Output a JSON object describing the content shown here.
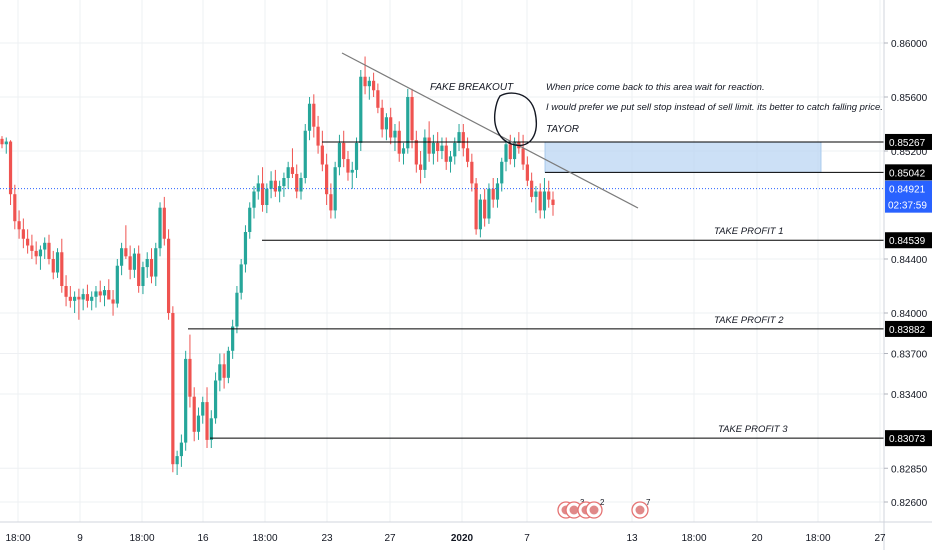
{
  "chart_data": {
    "type": "candlestick",
    "x_tick_labels": [
      "18:00",
      "9",
      "18:00",
      "16",
      "18:00",
      "23",
      "27",
      "2020",
      "7",
      "13",
      "18:00",
      "20",
      "18:00",
      "27"
    ],
    "y_tick_labels": [
      "0.86000",
      "0.85600",
      "0.85200",
      "0.84400",
      "0.84000",
      "0.83700",
      "0.83400",
      "0.82850",
      "0.82600"
    ],
    "ylim": [
      0.8245,
      0.8628
    ],
    "grid": true,
    "last_price": {
      "value": 0.84921,
      "label": "0.84921",
      "countdown": "02:37:59",
      "color": "#2962ff"
    },
    "levels": [
      {
        "id": "sell-zone-top",
        "value": 0.85267,
        "label": "0.85267",
        "text": ""
      },
      {
        "id": "sell-zone-bottom",
        "value": 0.85042,
        "label": "0.85042",
        "text": ""
      },
      {
        "id": "take-profit-1",
        "value": 0.84539,
        "label": "0.84539",
        "text": "TAKE PROFIT 1"
      },
      {
        "id": "take-profit-2",
        "value": 0.83882,
        "label": "0.83882",
        "text": "TAKE PROFIT 2"
      },
      {
        "id": "take-profit-3",
        "value": 0.83073,
        "label": "0.83073",
        "text": "TAKE PROFIT 3"
      }
    ],
    "annotations": {
      "fake_breakout": "FAKE BREAKOUT",
      "note_1": "When price come back to this area wait for reaction.",
      "note_2": "I would prefer we put sell stop instead of sell limit. its better to catch falling price.",
      "author": "TAYOR"
    },
    "trendline": {
      "from": [
        0.859,
        "Dec 23"
      ],
      "to": [
        0.8478,
        "Jan 10"
      ]
    },
    "event_markers": [
      {
        "count": "3"
      },
      {
        "count": "2"
      },
      {
        "count": "7"
      }
    ],
    "colors": {
      "up": "#26a69a",
      "down": "#ef5350",
      "zone": "#bbd6f3",
      "grid": "#eef0f3"
    },
    "candles": [
      [
        0.8529,
        0.8531,
        0.8522,
        0.8525
      ],
      [
        0.8525,
        0.853,
        0.8518,
        0.8527
      ],
      [
        0.8527,
        0.8528,
        0.848,
        0.8488
      ],
      [
        0.8488,
        0.8495,
        0.8462,
        0.8468
      ],
      [
        0.8468,
        0.8476,
        0.8455,
        0.8462
      ],
      [
        0.8462,
        0.847,
        0.8448,
        0.8455
      ],
      [
        0.8455,
        0.8462,
        0.8444,
        0.845
      ],
      [
        0.845,
        0.8458,
        0.844,
        0.8446
      ],
      [
        0.8446,
        0.8453,
        0.8436,
        0.8442
      ],
      [
        0.8442,
        0.845,
        0.8432,
        0.8447
      ],
      [
        0.8447,
        0.8456,
        0.844,
        0.8452
      ],
      [
        0.8452,
        0.8458,
        0.8436,
        0.844
      ],
      [
        0.844,
        0.8446,
        0.8425,
        0.843
      ],
      [
        0.843,
        0.8448,
        0.8426,
        0.8445
      ],
      [
        0.8445,
        0.8455,
        0.8415,
        0.842
      ],
      [
        0.842,
        0.8428,
        0.8405,
        0.8412
      ],
      [
        0.8412,
        0.842,
        0.8404,
        0.8409
      ],
      [
        0.8409,
        0.8416,
        0.84,
        0.8412
      ],
      [
        0.8412,
        0.8418,
        0.8395,
        0.841
      ],
      [
        0.841,
        0.8418,
        0.8402,
        0.8414
      ],
      [
        0.8414,
        0.8421,
        0.8404,
        0.8409
      ],
      [
        0.8409,
        0.8416,
        0.8402,
        0.8412
      ],
      [
        0.8412,
        0.842,
        0.8404,
        0.8416
      ],
      [
        0.8416,
        0.8424,
        0.8408,
        0.8413
      ],
      [
        0.8413,
        0.842,
        0.8405,
        0.8417
      ],
      [
        0.8417,
        0.8425,
        0.841,
        0.841
      ],
      [
        0.841,
        0.8417,
        0.8398,
        0.8407
      ],
      [
        0.8407,
        0.844,
        0.8404,
        0.8435
      ],
      [
        0.8435,
        0.8452,
        0.8428,
        0.8448
      ],
      [
        0.8448,
        0.8465,
        0.844,
        0.8442
      ],
      [
        0.8442,
        0.845,
        0.8425,
        0.8432
      ],
      [
        0.8432,
        0.8448,
        0.8426,
        0.8444
      ],
      [
        0.8444,
        0.845,
        0.8415,
        0.842
      ],
      [
        0.842,
        0.8438,
        0.8414,
        0.8434
      ],
      [
        0.8434,
        0.8445,
        0.8426,
        0.844
      ],
      [
        0.844,
        0.8448,
        0.8422,
        0.8427
      ],
      [
        0.8427,
        0.8452,
        0.842,
        0.8448
      ],
      [
        0.8448,
        0.8482,
        0.8442,
        0.8478
      ],
      [
        0.8478,
        0.8486,
        0.845,
        0.8455
      ],
      [
        0.8455,
        0.8462,
        0.8395,
        0.84
      ],
      [
        0.84,
        0.8405,
        0.8282,
        0.8288
      ],
      [
        0.8288,
        0.8298,
        0.828,
        0.8294
      ],
      [
        0.8294,
        0.831,
        0.8286,
        0.8304
      ],
      [
        0.8304,
        0.8372,
        0.8298,
        0.8366
      ],
      [
        0.8366,
        0.8384,
        0.833,
        0.8338
      ],
      [
        0.8338,
        0.8345,
        0.8305,
        0.8312
      ],
      [
        0.8312,
        0.833,
        0.8306,
        0.8324
      ],
      [
        0.8324,
        0.8338,
        0.8318,
        0.8334
      ],
      [
        0.8334,
        0.8345,
        0.83,
        0.8306
      ],
      [
        0.8306,
        0.8328,
        0.83,
        0.8322
      ],
      [
        0.8322,
        0.8356,
        0.8318,
        0.835
      ],
      [
        0.835,
        0.837,
        0.8342,
        0.8362
      ],
      [
        0.8362,
        0.837,
        0.8344,
        0.8352
      ],
      [
        0.8352,
        0.8375,
        0.8348,
        0.8372
      ],
      [
        0.8372,
        0.8395,
        0.8366,
        0.839
      ],
      [
        0.839,
        0.842,
        0.8385,
        0.8415
      ],
      [
        0.8415,
        0.844,
        0.841,
        0.8436
      ],
      [
        0.8436,
        0.8465,
        0.843,
        0.846
      ],
      [
        0.846,
        0.8482,
        0.8455,
        0.8478
      ],
      [
        0.8478,
        0.8494,
        0.847,
        0.849
      ],
      [
        0.849,
        0.8502,
        0.8484,
        0.8496
      ],
      [
        0.8496,
        0.8508,
        0.8475,
        0.848
      ],
      [
        0.848,
        0.8496,
        0.8474,
        0.8492
      ],
      [
        0.8492,
        0.8505,
        0.8485,
        0.8498
      ],
      [
        0.8498,
        0.8506,
        0.8486,
        0.849
      ],
      [
        0.849,
        0.8498,
        0.8482,
        0.8494
      ],
      [
        0.8494,
        0.8504,
        0.8486,
        0.85
      ],
      [
        0.85,
        0.8512,
        0.8492,
        0.8508
      ],
      [
        0.8508,
        0.8522,
        0.85,
        0.8503
      ],
      [
        0.8503,
        0.851,
        0.8485,
        0.849
      ],
      [
        0.849,
        0.8504,
        0.8484,
        0.85
      ],
      [
        0.85,
        0.854,
        0.8496,
        0.8535
      ],
      [
        0.8535,
        0.856,
        0.8528,
        0.8555
      ],
      [
        0.8555,
        0.8562,
        0.853,
        0.8538
      ],
      [
        0.8538,
        0.8546,
        0.8518,
        0.8524
      ],
      [
        0.8524,
        0.8535,
        0.8505,
        0.851
      ],
      [
        0.851,
        0.8518,
        0.848,
        0.8488
      ],
      [
        0.8488,
        0.8496,
        0.847,
        0.8476
      ],
      [
        0.8476,
        0.8512,
        0.847,
        0.8508
      ],
      [
        0.8508,
        0.8532,
        0.8502,
        0.8526
      ],
      [
        0.8526,
        0.8535,
        0.8508,
        0.8514
      ],
      [
        0.8514,
        0.852,
        0.8498,
        0.8504
      ],
      [
        0.8504,
        0.8512,
        0.8492,
        0.8506
      ],
      [
        0.8506,
        0.853,
        0.85,
        0.8526
      ],
      [
        0.8526,
        0.858,
        0.852,
        0.8575
      ],
      [
        0.8575,
        0.859,
        0.8562,
        0.8568
      ],
      [
        0.8568,
        0.8575,
        0.8558,
        0.8572
      ],
      [
        0.8572,
        0.8578,
        0.856,
        0.8565
      ],
      [
        0.8565,
        0.857,
        0.8548,
        0.8552
      ],
      [
        0.8552,
        0.8558,
        0.853,
        0.8536
      ],
      [
        0.8536,
        0.8548,
        0.8528,
        0.8545
      ],
      [
        0.8545,
        0.8552,
        0.8525,
        0.853
      ],
      [
        0.853,
        0.854,
        0.852,
        0.8535
      ],
      [
        0.8535,
        0.8542,
        0.8512,
        0.8518
      ],
      [
        0.8518,
        0.8526,
        0.851,
        0.8522
      ],
      [
        0.8522,
        0.8566,
        0.8518,
        0.856
      ],
      [
        0.856,
        0.8566,
        0.8522,
        0.8528
      ],
      [
        0.8528,
        0.8535,
        0.8504,
        0.851
      ],
      [
        0.851,
        0.852,
        0.8496,
        0.8506
      ],
      [
        0.8506,
        0.8536,
        0.85,
        0.853
      ],
      [
        0.853,
        0.8542,
        0.8512,
        0.8518
      ],
      [
        0.8518,
        0.8532,
        0.851,
        0.8526
      ],
      [
        0.8526,
        0.8534,
        0.8512,
        0.852
      ],
      [
        0.852,
        0.853,
        0.8514,
        0.8524
      ],
      [
        0.8524,
        0.853,
        0.8506,
        0.8512
      ],
      [
        0.8512,
        0.852,
        0.8504,
        0.8516
      ],
      [
        0.8516,
        0.853,
        0.851,
        0.8526
      ],
      [
        0.8526,
        0.854,
        0.852,
        0.8534
      ],
      [
        0.8534,
        0.854,
        0.8516,
        0.8522
      ],
      [
        0.8522,
        0.853,
        0.8508,
        0.8512
      ],
      [
        0.8512,
        0.8518,
        0.849,
        0.8496
      ],
      [
        0.8496,
        0.85,
        0.8458,
        0.8462
      ],
      [
        0.8462,
        0.8488,
        0.8456,
        0.8484
      ],
      [
        0.8484,
        0.8492,
        0.8464,
        0.847
      ],
      [
        0.847,
        0.8496,
        0.8466,
        0.8492
      ],
      [
        0.8492,
        0.85,
        0.8478,
        0.8484
      ],
      [
        0.8484,
        0.85,
        0.8478,
        0.8496
      ],
      [
        0.8496,
        0.8515,
        0.849,
        0.8512
      ],
      [
        0.8512,
        0.8528,
        0.8505,
        0.8525
      ],
      [
        0.8525,
        0.8532,
        0.851,
        0.8514
      ],
      [
        0.8514,
        0.853,
        0.8508,
        0.8527
      ],
      [
        0.8527,
        0.8534,
        0.8518,
        0.8522
      ],
      [
        0.8522,
        0.8532,
        0.8506,
        0.851
      ],
      [
        0.851,
        0.8516,
        0.8494,
        0.8498
      ],
      [
        0.8498,
        0.8504,
        0.8482,
        0.8486
      ],
      [
        0.8486,
        0.8494,
        0.8474,
        0.849
      ],
      [
        0.849,
        0.8496,
        0.847,
        0.8476
      ],
      [
        0.8476,
        0.85,
        0.847,
        0.849
      ],
      [
        0.849,
        0.8498,
        0.8478,
        0.8484
      ],
      [
        0.8484,
        0.849,
        0.8472,
        0.848
      ]
    ],
    "x_tick_positions_note": "",
    "footer_year_label": "2020"
  }
}
